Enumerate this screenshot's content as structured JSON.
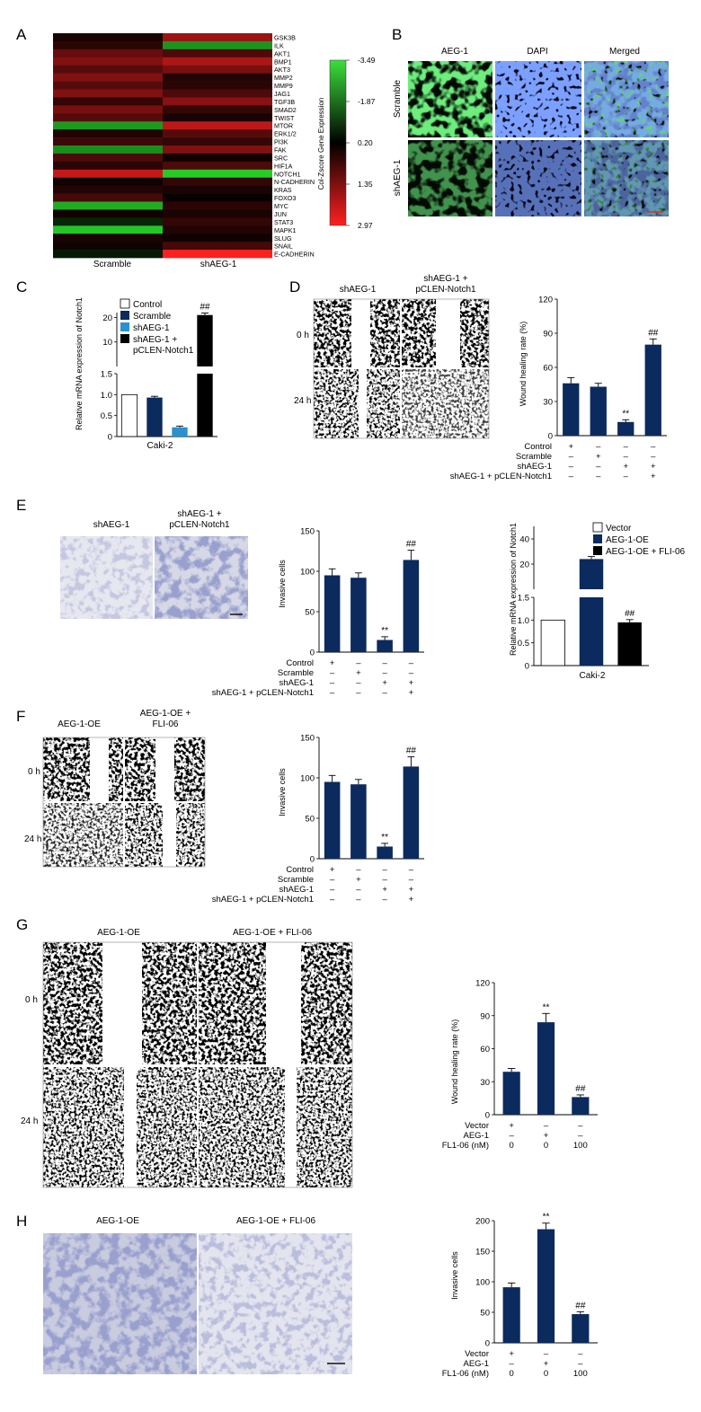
{
  "panels": {
    "A": {
      "letter": "A",
      "groups": [
        "Scramble",
        "shAEG-1"
      ],
      "genes": [
        "GSK3B",
        "ILK",
        "AKT1",
        "BMP1",
        "AKT3",
        "MMP2",
        "MMP9",
        "JAG1",
        "TGF3B",
        "SMAD2",
        "TWIST",
        "MTOR",
        "ERK1/2",
        "PI3K",
        "FAK",
        "SRC",
        "HIF1A",
        "NOTCH1",
        "N-CADHERIN",
        "KRAS",
        "FOXO3",
        "MYC",
        "JUN",
        "STAT3",
        "MAPK1",
        "SLUG",
        "SNAIL",
        "E-CADHERIN"
      ],
      "zscores_scramble": [
        0.3,
        0.5,
        1.2,
        1.5,
        1.0,
        1.5,
        1.0,
        1.5,
        0.6,
        1.4,
        1.0,
        -2.5,
        0.4,
        0.7,
        -2.3,
        0.9,
        0.5,
        2.3,
        0.2,
        0.4,
        0.8,
        -2.8,
        0.2,
        -0.6,
        -3.2,
        0.3,
        0.2,
        -0.4
      ],
      "zscores_shaeg1": [
        1.8,
        -2.4,
        0.9,
        2.0,
        1.4,
        0.4,
        0.5,
        0.9,
        1.6,
        0.6,
        0.3,
        2.2,
        1.0,
        0.6,
        1.5,
        0.2,
        0.9,
        -3.3,
        0.6,
        0.3,
        0.1,
        0.5,
        0.3,
        0.6,
        0.4,
        0.2,
        0.8,
        2.95
      ],
      "colorbar_title": "Col-Zscore Gene Expression",
      "colorbar_ticks": [
        "-3.49",
        "-1.87",
        "0.20",
        "1.35",
        "2.97"
      ],
      "colors": {
        "low": "#2fd12f",
        "mid": "#000000",
        "high": "#ff2020"
      }
    },
    "B": {
      "letter": "B",
      "columns": [
        "AEG-1",
        "DAPI",
        "Merged"
      ],
      "rows": [
        "Scramble",
        "shAEG-1"
      ]
    },
    "C": {
      "letter": "C",
      "ylabel": "Relative mRNA expression of Notch1",
      "xlabel": "Caki-2",
      "legend": [
        "Control",
        "Scramble",
        "shAEG-1",
        "shAEG-1 +",
        "pCLEN-Notch1"
      ],
      "annotation": "##"
    },
    "D": {
      "letter": "D",
      "cols": [
        "shAEG-1",
        "shAEG-1 +",
        "pCLEN-Notch1"
      ],
      "rows": [
        "0 h",
        "24 h"
      ],
      "ylabel": "Wound healing rate (%)",
      "conditions": [
        "Control",
        "Scramble",
        "shAEG-1",
        "shAEG-1 + pCLEN-Notch1"
      ],
      "matrix": [
        [
          "+",
          "–",
          "–",
          "–"
        ],
        [
          "–",
          "+",
          "–",
          "–"
        ],
        [
          "–",
          "–",
          "+",
          "+"
        ],
        [
          "–",
          "–",
          "–",
          "+"
        ]
      ],
      "marks": [
        "",
        "",
        "**",
        "##"
      ]
    },
    "E": {
      "letter": "E",
      "cols": [
        "shAEG-1",
        "shAEG-1 +",
        "pCLEN-Notch1"
      ],
      "ylabel": "Invasive cells",
      "conditions": [
        "Control",
        "Scramble",
        "shAEG-1",
        "shAEG-1 + pCLEN-Notch1"
      ],
      "matrix": [
        [
          "+",
          "–",
          "–",
          "–"
        ],
        [
          "–",
          "+",
          "–",
          "–"
        ],
        [
          "–",
          "–",
          "+",
          "+"
        ],
        [
          "–",
          "–",
          "–",
          "+"
        ]
      ],
      "marks": [
        "",
        "",
        "**",
        "##"
      ],
      "notch_ylabel": "Relative mRNA expression of Notch1",
      "notch_xlabel": "Caki-2",
      "notch_legend": [
        "Vector",
        "AEG-1-OE",
        "AEG-1-OE + FLI-06"
      ],
      "notch_mark": "##"
    },
    "F": {
      "letter": "F",
      "cols": [
        "AEG-1-OE",
        "AEG-1-OE +",
        "FLI-06"
      ],
      "rows": [
        "0 h",
        "24 h"
      ],
      "ylabel": "Invasive cells",
      "conditions": [
        "Control",
        "Scramble",
        "shAEG-1",
        "shAEG-1 + pCLEN-Notch1"
      ],
      "matrix": [
        [
          "+",
          "–",
          "–",
          "–"
        ],
        [
          "–",
          "+",
          "–",
          "–"
        ],
        [
          "–",
          "–",
          "+",
          "+"
        ],
        [
          "–",
          "–",
          "–",
          "+"
        ]
      ],
      "marks": [
        "",
        "",
        "**",
        "##"
      ]
    },
    "G": {
      "letter": "G",
      "cols": [
        "AEG-1-OE",
        "AEG-1-OE + FLI-06"
      ],
      "rows": [
        "0 h",
        "24 h"
      ],
      "ylabel": "Wound healing rate (%)",
      "conditions": [
        "Vector",
        "AEG-1",
        "FL1-06 (nM)"
      ],
      "matrix": [
        [
          "+",
          "–",
          "–"
        ],
        [
          "–",
          "+",
          "–"
        ],
        [
          "0",
          "0",
          "100"
        ]
      ],
      "marks": [
        "",
        "**",
        "##"
      ]
    },
    "H": {
      "letter": "H",
      "cols": [
        "AEG-1-OE",
        "AEG-1-OE + FLI-06"
      ],
      "ylabel": "Invasive cells",
      "conditions": [
        "Vector",
        "AEG-1",
        "FL1-06 (nM)"
      ],
      "matrix": [
        [
          "+",
          "–",
          "–"
        ],
        [
          "–",
          "+",
          "–"
        ],
        [
          "0",
          "0",
          "100"
        ]
      ],
      "marks": [
        "",
        "**",
        "##"
      ]
    }
  },
  "chart_data": [
    {
      "id": "C",
      "type": "bar",
      "broken_axis": true,
      "categories": [
        "Control",
        "Scramble",
        "shAEG-1",
        "shAEG-1 + pCLEN-Notch1"
      ],
      "values": [
        1.0,
        0.93,
        0.22,
        21.0
      ],
      "errors": [
        0,
        0.03,
        0.03,
        0.8
      ],
      "colors": [
        "#ffffff",
        "#0b2a5e",
        "#2a90d0",
        "#000000"
      ],
      "ylabel": "Relative mRNA expression of Notch1",
      "xlabel": "Caki-2",
      "yticks_lower": [
        0,
        0.5,
        1.0,
        1.5
      ],
      "yticks_upper": [
        10,
        20
      ]
    },
    {
      "id": "D",
      "type": "bar",
      "categories": [
        "Control",
        "Scramble",
        "shAEG-1",
        "shAEG-1 + pCLEN-Notch1"
      ],
      "values": [
        46,
        43,
        12,
        80
      ],
      "errors": [
        5,
        3,
        2,
        5
      ],
      "ylabel": "Wound healing rate (%)",
      "ylim": [
        0,
        120
      ],
      "yticks": [
        0,
        30,
        60,
        90,
        120
      ]
    },
    {
      "id": "E",
      "type": "bar",
      "categories": [
        "Control",
        "Scramble",
        "shAEG-1",
        "shAEG-1 + pCLEN-Notch1"
      ],
      "values": [
        95,
        92,
        15,
        114
      ],
      "errors": [
        8,
        6,
        4,
        12
      ],
      "ylabel": "Invasive cells",
      "ylim": [
        0,
        150
      ],
      "yticks": [
        0,
        50,
        100,
        150
      ]
    },
    {
      "id": "E-notch",
      "type": "bar",
      "broken_axis": true,
      "categories": [
        "Vector",
        "AEG-1-OE",
        "AEG-1-OE + FLI-06"
      ],
      "values": [
        1.0,
        24.0,
        0.95
      ],
      "errors": [
        0,
        2.0,
        0.06
      ],
      "colors": [
        "#ffffff",
        "#0b2a5e",
        "#000000"
      ],
      "ylabel": "Relative mRNA expression of Notch1",
      "xlabel": "Caki-2",
      "yticks_lower": [
        0,
        0.5,
        1.0,
        1.5
      ],
      "yticks_upper": [
        20,
        40
      ]
    },
    {
      "id": "F",
      "type": "bar",
      "categories": [
        "Control",
        "Scramble",
        "shAEG-1",
        "shAEG-1 + pCLEN-Notch1"
      ],
      "values": [
        95,
        92,
        15,
        114
      ],
      "errors": [
        8,
        6,
        4,
        12
      ],
      "ylabel": "Invasive cells",
      "ylim": [
        0,
        150
      ],
      "yticks": [
        0,
        50,
        100,
        150
      ]
    },
    {
      "id": "G",
      "type": "bar",
      "categories": [
        "Vector",
        "AEG-1",
        "FL1-06 100 nM"
      ],
      "values": [
        39,
        84,
        16
      ],
      "errors": [
        3,
        8,
        2
      ],
      "ylabel": "Wound healing rate (%)",
      "ylim": [
        0,
        120
      ],
      "yticks": [
        0,
        30,
        60,
        90,
        120
      ]
    },
    {
      "id": "H",
      "type": "bar",
      "categories": [
        "Vector",
        "AEG-1",
        "FL1-06 100 nM"
      ],
      "values": [
        91,
        186,
        47
      ],
      "errors": [
        7,
        10,
        4
      ],
      "ylabel": "Invasive cells",
      "ylim": [
        0,
        200
      ],
      "yticks": [
        0,
        50,
        100,
        150,
        200
      ]
    }
  ]
}
